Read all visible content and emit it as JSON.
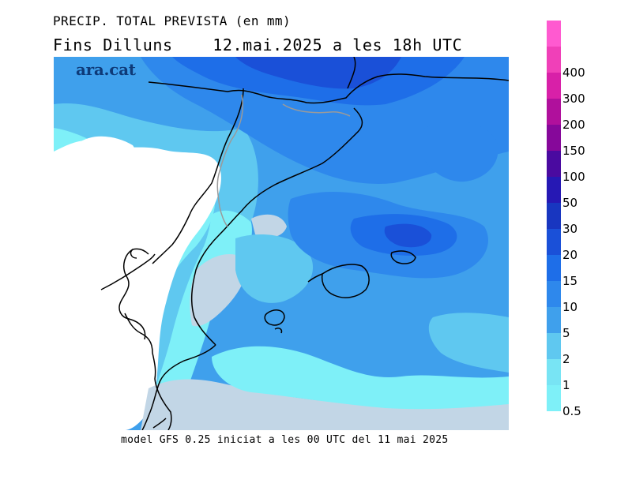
{
  "title": {
    "line1": "PRECIP. TOTAL PREVISTA (en mm)",
    "line2": "Fins Dilluns    12.mai.2025 a les 18h UTC"
  },
  "logo": {
    "text": "ara.cat",
    "color": "#0e3a78"
  },
  "footer": {
    "model_text": "model GFS 0.25 iniciat a les 00 UTC del 11 mai 2025"
  },
  "legend": {
    "levels": [
      {
        "label": "0.5",
        "color": "#7ef0f8"
      },
      {
        "label": "1",
        "color": "#78e4f4"
      },
      {
        "label": "2",
        "color": "#5fc8f0"
      },
      {
        "label": "5",
        "color": "#3fa0ec"
      },
      {
        "label": "10",
        "color": "#2e88ec"
      },
      {
        "label": "15",
        "color": "#1e6ee8"
      },
      {
        "label": "20",
        "color": "#1a50d8"
      },
      {
        "label": "30",
        "color": "#1836c0"
      },
      {
        "label": "50",
        "color": "#2618b4"
      },
      {
        "label": "100",
        "color": "#4a0aa0"
      },
      {
        "label": "150",
        "color": "#86089a"
      },
      {
        "label": "200",
        "color": "#b0109c"
      },
      {
        "label": "300",
        "color": "#d820a8"
      },
      {
        "label": "400",
        "color": "#f040b8"
      },
      {
        "label": "",
        "color": "#ff5ad0"
      }
    ]
  },
  "map": {
    "colors": {
      "lightest": "#7ef0f8",
      "light": "#5fc8f0",
      "mid": "#3fa0ec",
      "deep": "#2e88ec",
      "deeper": "#1e6ee8",
      "deepest": "#1a50d8",
      "dry": "#ffffff",
      "sea_gray": "#c2d6e6",
      "coast": "#000000",
      "border": "#9a9a9a"
    }
  }
}
